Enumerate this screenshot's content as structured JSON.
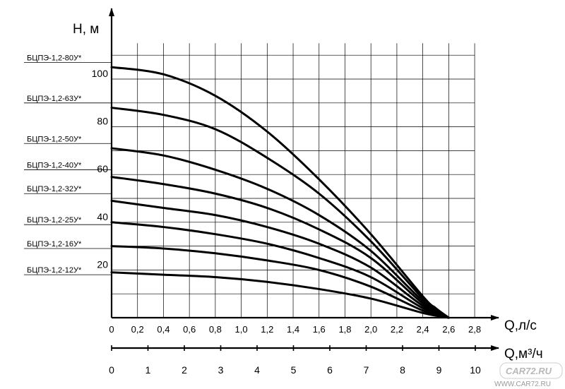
{
  "chart_data": {
    "type": "line",
    "title": "",
    "ylabel": "Н, м",
    "xlabel_primary": "Q,л/с",
    "xlabel_secondary": "Q,м³/ч",
    "ylim": [
      0,
      115
    ],
    "xlim": [
      0,
      2.9
    ],
    "grid": true,
    "y_ticks": [
      "20",
      "40",
      "60",
      "80",
      "100"
    ],
    "x_ticks": [
      "0",
      "0,2",
      "0,4",
      "0,6",
      "0,8",
      "1,0",
      "1,2",
      "1,4",
      "1,6",
      "1,8",
      "2,0",
      "2,2",
      "2,4",
      "2,6",
      "2,8"
    ],
    "x2_ticks": [
      "0",
      "1",
      "2",
      "3",
      "4",
      "5",
      "6",
      "7",
      "8",
      "9",
      "10"
    ],
    "series": [
      {
        "name": "БЦПЭ-1,2-80У*",
        "label_h": 107,
        "points": [
          [
            0,
            105
          ],
          [
            0.4,
            102
          ],
          [
            0.8,
            93
          ],
          [
            1.2,
            78
          ],
          [
            1.6,
            58
          ],
          [
            2.0,
            35
          ],
          [
            2.4,
            9
          ],
          [
            2.5,
            4
          ]
        ]
      },
      {
        "name": "БЦПЭ-1,2-63У*",
        "label_h": 90,
        "points": [
          [
            0,
            88
          ],
          [
            0.4,
            85
          ],
          [
            0.8,
            79
          ],
          [
            1.2,
            67
          ],
          [
            1.6,
            52
          ],
          [
            2.0,
            32
          ],
          [
            2.4,
            8
          ],
          [
            2.5,
            3
          ]
        ]
      },
      {
        "name": "БЦПЭ-1,2-50У*",
        "label_h": 73,
        "points": [
          [
            0,
            71
          ],
          [
            0.4,
            68
          ],
          [
            0.8,
            62
          ],
          [
            1.2,
            54
          ],
          [
            1.6,
            43
          ],
          [
            2.0,
            28
          ],
          [
            2.4,
            7
          ]
        ]
      },
      {
        "name": "БЦПЭ-1,2-40У*",
        "label_h": 62,
        "points": [
          [
            0,
            59
          ],
          [
            0.4,
            56
          ],
          [
            0.8,
            52
          ],
          [
            1.2,
            46
          ],
          [
            1.6,
            37
          ],
          [
            2.0,
            25
          ],
          [
            2.4,
            6
          ]
        ]
      },
      {
        "name": "БЦПЭ-1,2-32У*",
        "label_h": 52,
        "points": [
          [
            0,
            49
          ],
          [
            0.4,
            46
          ],
          [
            0.8,
            43
          ],
          [
            1.2,
            38
          ],
          [
            1.6,
            31
          ],
          [
            2.0,
            21
          ],
          [
            2.4,
            5
          ]
        ]
      },
      {
        "name": "БЦПЭ-1,2-25У*",
        "label_h": 39,
        "points": [
          [
            0,
            40
          ],
          [
            0.4,
            38
          ],
          [
            0.8,
            35
          ],
          [
            1.2,
            31
          ],
          [
            1.6,
            25
          ],
          [
            2.0,
            17
          ],
          [
            2.4,
            4
          ]
        ]
      },
      {
        "name": "БЦПЭ-1,2-16У*",
        "label_h": 29,
        "points": [
          [
            0,
            30
          ],
          [
            0.4,
            29
          ],
          [
            0.8,
            27
          ],
          [
            1.2,
            24
          ],
          [
            1.6,
            20
          ],
          [
            2.0,
            13
          ],
          [
            2.4,
            3
          ]
        ]
      },
      {
        "name": "БЦПЭ-1,2-12У*",
        "label_h": 18,
        "points": [
          [
            0,
            19
          ],
          [
            0.4,
            18
          ],
          [
            0.8,
            17
          ],
          [
            1.2,
            15
          ],
          [
            1.6,
            12
          ],
          [
            2.0,
            8
          ],
          [
            2.4,
            2
          ]
        ]
      }
    ]
  },
  "watermark": {
    "logo": "CAR72.RU",
    "url": "WWW.CAR72.RU"
  }
}
